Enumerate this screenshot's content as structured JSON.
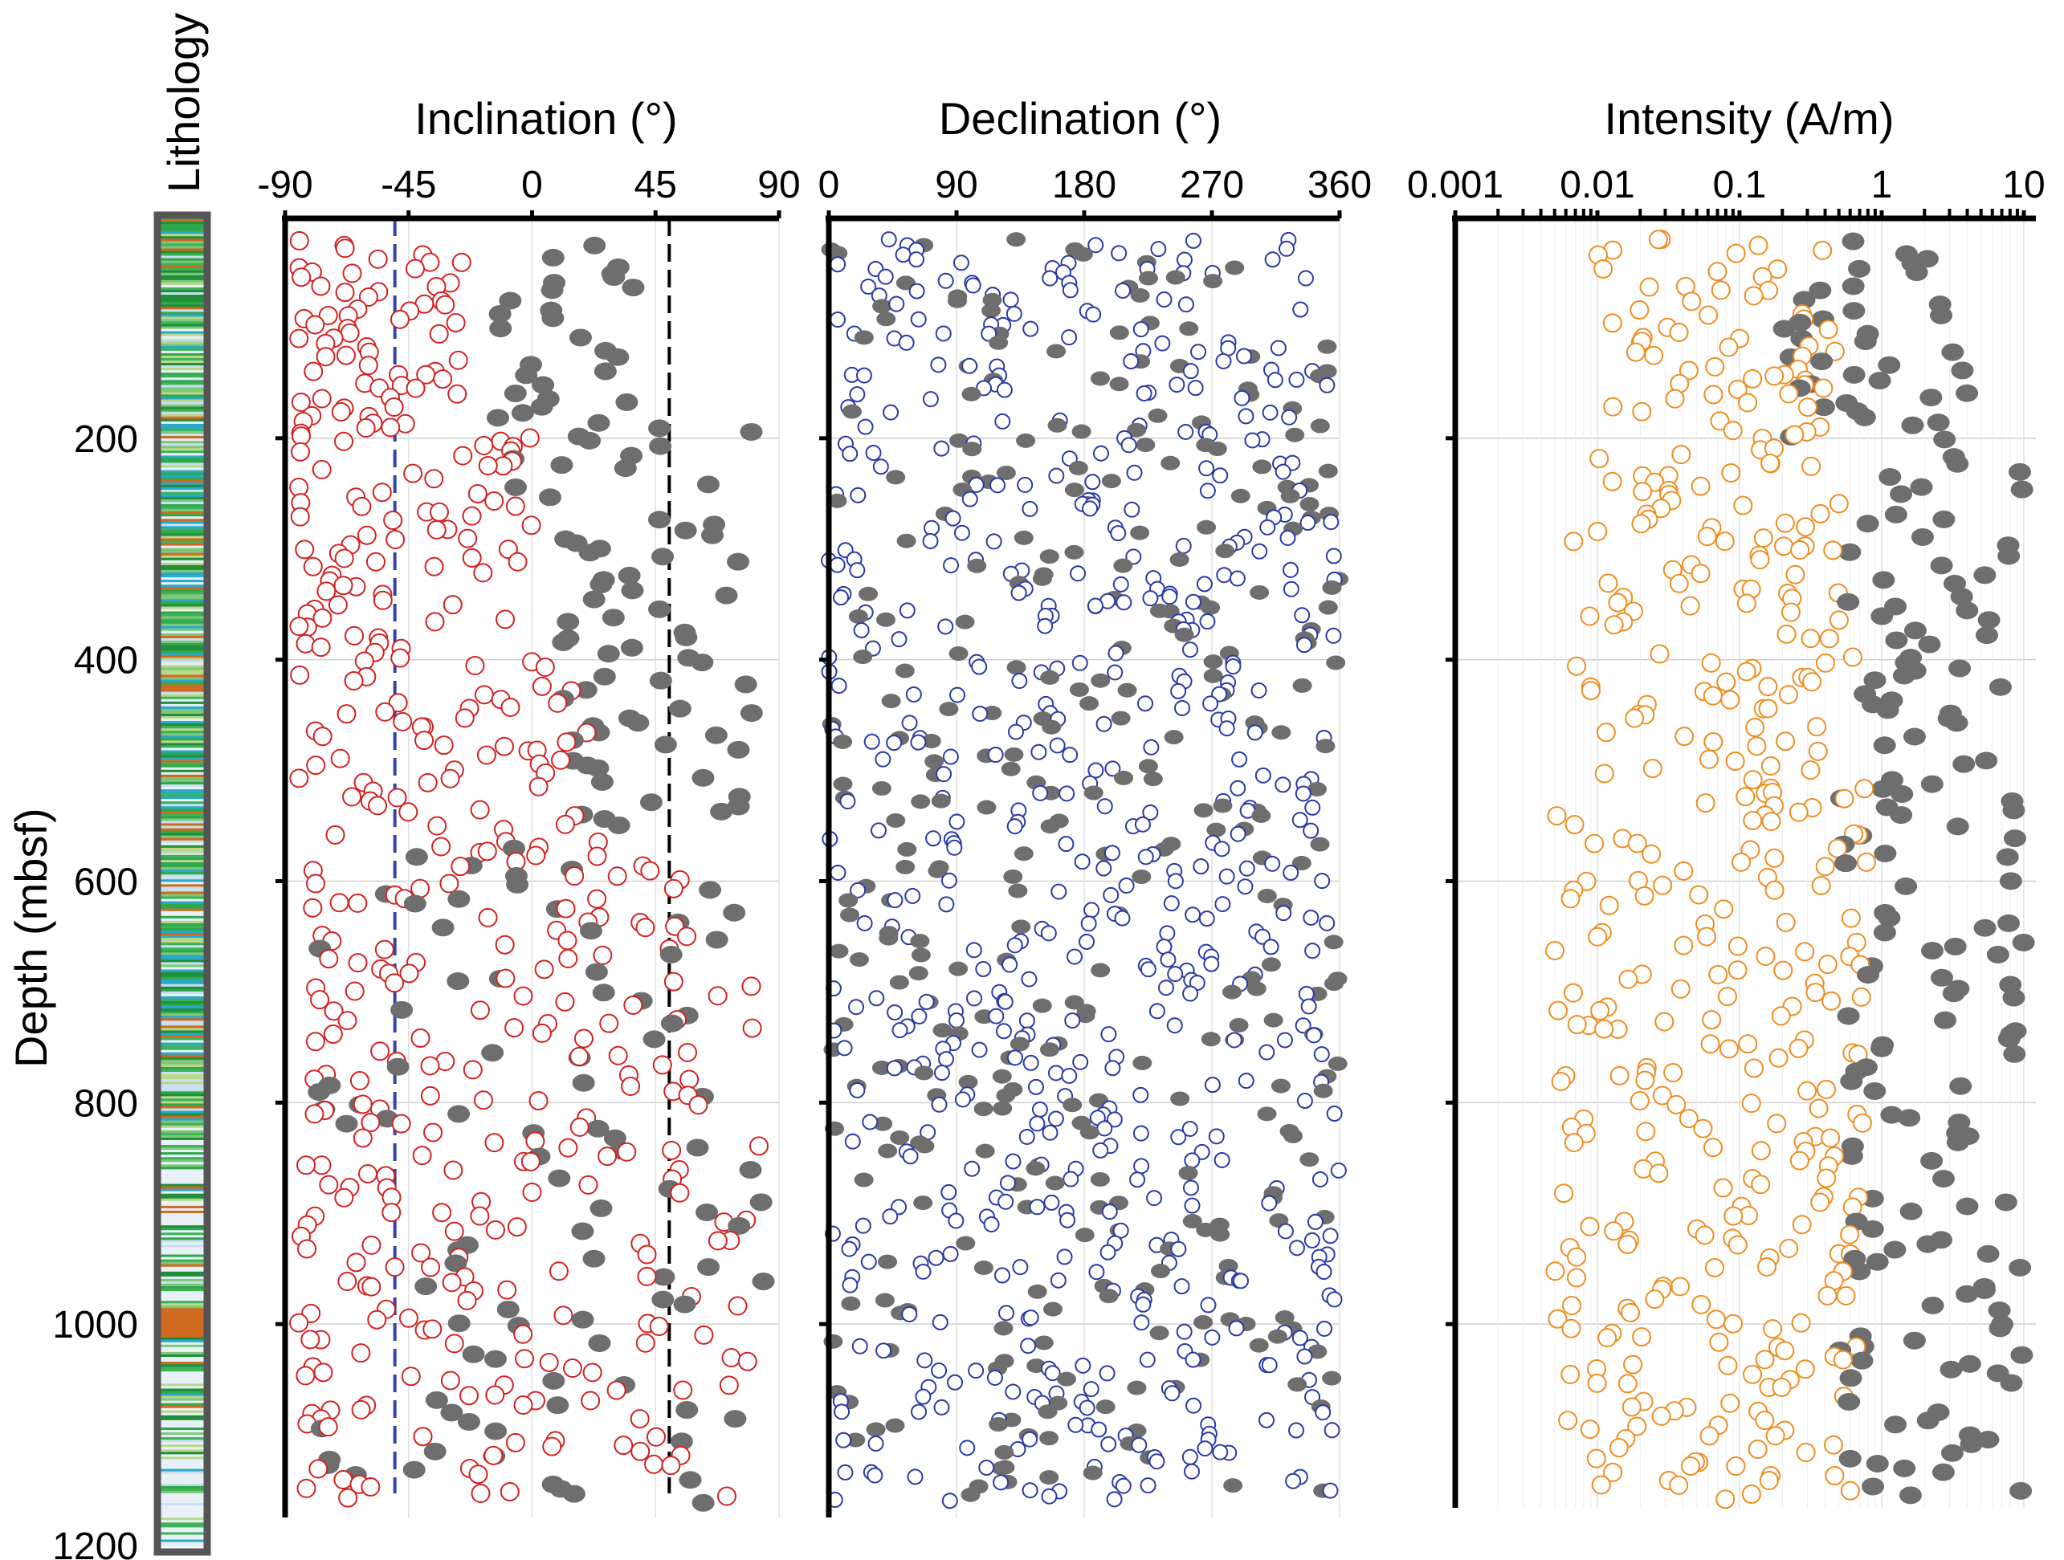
{
  "lithology": {
    "label": "Lithology"
  },
  "depth_axis": {
    "label": "Depth (mbsf)",
    "ticks": [
      200,
      400,
      600,
      800,
      1000,
      1200
    ],
    "range": [
      1200,
      0
    ]
  },
  "chart_data": [
    {
      "type": "scatter",
      "title": "Inclination (°)",
      "x_ticks": [
        "-90",
        "-45",
        "0",
        "45",
        "90"
      ],
      "xlim": [
        -90,
        90
      ],
      "ylim": [
        1200,
        0
      ],
      "reference_lines": [
        -50,
        50
      ],
      "colors": {
        "open": "#d42020",
        "filled": "#6e6e6e",
        "ref_neg": "#3344aa",
        "ref_pos": "#000000"
      },
      "bands": [
        {
          "from": 20,
          "to": 185,
          "open": [
            -85,
            -15
          ],
          "filled": [
            -15,
            40
          ]
        },
        {
          "from": 185,
          "to": 380,
          "open": [
            -85,
            0
          ],
          "filled": [
            -10,
            80
          ]
        },
        {
          "from": 380,
          "to": 560,
          "open": [
            -85,
            20
          ],
          "filled": [
            10,
            80
          ]
        },
        {
          "from": 560,
          "to": 780,
          "open": [
            -80,
            85
          ],
          "filled": [
            -80,
            85
          ]
        },
        {
          "from": 780,
          "to": 1000,
          "open": [
            -85,
            85
          ],
          "filled": [
            -80,
            85
          ]
        },
        {
          "from": 1000,
          "to": 1160,
          "open": [
            -85,
            85
          ],
          "filled": [
            -85,
            85
          ]
        }
      ]
    },
    {
      "type": "scatter",
      "title": "Declination (°)",
      "x_ticks": [
        "0",
        "90",
        "180",
        "270",
        "360"
      ],
      "xlim": [
        0,
        360
      ],
      "ylim": [
        1200,
        0
      ],
      "colors": {
        "open": "#2a3aa6",
        "filled": "#6e6e6e"
      },
      "bands": [
        {
          "from": 20,
          "to": 200,
          "open": [
            0,
            360
          ],
          "filled": [
            0,
            360
          ]
        },
        {
          "from": 200,
          "to": 1160,
          "open": [
            0,
            360
          ],
          "filled": [
            0,
            360
          ]
        }
      ]
    },
    {
      "type": "scatter",
      "title": "Intensity (A/m)",
      "x_ticks": [
        "0.001",
        "0.01",
        "0.1",
        "1",
        "10"
      ],
      "xlim": [
        0.001,
        20
      ],
      "x_scale": "log",
      "ylim": [
        1200,
        0
      ],
      "colors": {
        "open": "#f08c1e",
        "filled": "#6e6e6e"
      },
      "bands": [
        {
          "from": 20,
          "to": 200,
          "open": [
            0.01,
            0.5
          ],
          "filled": [
            0.2,
            4
          ]
        },
        {
          "from": 200,
          "to": 1160,
          "open": [
            0.005,
            0.8
          ],
          "filled": [
            0.5,
            10
          ]
        }
      ]
    }
  ]
}
